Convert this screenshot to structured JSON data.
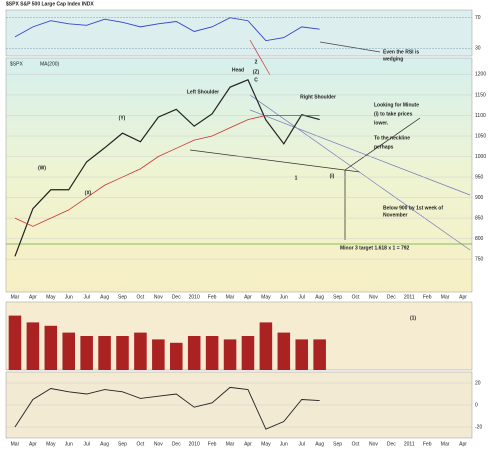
{
  "chart_data": [
    {
      "type": "line",
      "title": "$SPX S&P 500 Large Cap Index INDX",
      "values": [
        45,
        58,
        66,
        62,
        60,
        68,
        64,
        58,
        62,
        65,
        52,
        58,
        70,
        66,
        40,
        44,
        58,
        55,
        null,
        null,
        null,
        null,
        null,
        null,
        null,
        null
      ],
      "color": "#3344cc",
      "ylim": [
        20,
        80
      ],
      "yticks": [
        30,
        70
      ]
    },
    {
      "type": "line",
      "categories": [
        "Mar",
        "Apr",
        "May",
        "Jun",
        "Jul",
        "Aug",
        "Sep",
        "Oct",
        "Nov",
        "Dec",
        "2010",
        "Feb",
        "Mar",
        "Apr",
        "May",
        "Jun",
        "Jul",
        "Aug",
        "Sep",
        "Oct",
        "Nov",
        "Dec",
        "2011",
        "Feb",
        "Mar",
        "Apr"
      ],
      "series": [
        {
          "name": "$SPX",
          "color": "#222222",
          "values": [
            757,
            873,
            919,
            919,
            987,
            1021,
            1057,
            1036,
            1096,
            1115,
            1074,
            1104,
            1169,
            1187,
            1089,
            1031,
            1102,
            1090,
            null,
            null,
            null,
            null,
            null,
            null,
            null,
            null
          ]
        },
        {
          "name": "MA(200)",
          "color": "#cc3333",
          "values": [
            850,
            830,
            850,
            870,
            900,
            930,
            950,
            970,
            1000,
            1020,
            1040,
            1050,
            1070,
            1090,
            1100,
            1100,
            1100,
            1100,
            null,
            null,
            null,
            null,
            null,
            null,
            null,
            null
          ]
        }
      ],
      "ylim": [
        670,
        1240
      ],
      "yticks": [
        750,
        800,
        850,
        900,
        950,
        1000,
        1050,
        1100,
        1150,
        1200
      ],
      "grid": true,
      "annotations": [
        "Head",
        "Left Shoulder",
        "Right Shoulder",
        "2",
        "C",
        "1",
        "(W)",
        "(X)",
        "(Y)",
        "(Z)",
        "(i)",
        "Looking  for Minute",
        "(i) to take prices",
        "lower.",
        "To the neckline",
        "perhaps",
        "Below 900 by 1st week of",
        "November",
        "Minor 3 target 1.618 x 1 = 792",
        "Even the RSI is",
        "wedging"
      ]
    },
    {
      "type": "bar",
      "values": [
        8,
        7,
        6.5,
        5.5,
        5,
        5,
        5,
        5.5,
        4.5,
        4,
        5,
        5,
        4.5,
        5,
        7,
        5.5,
        4.5,
        4.5,
        null,
        null,
        null,
        null,
        null,
        null,
        null,
        null
      ],
      "color": "#aa2222",
      "ylim": [
        0,
        10
      ],
      "annotations": [
        "(1)"
      ]
    },
    {
      "type": "line",
      "categories": [
        "Mar",
        "Apr",
        "May",
        "Jun",
        "Jul",
        "Aug",
        "Sep",
        "Oct",
        "Nov",
        "Dec",
        "2010",
        "Feb",
        "Mar",
        "Apr",
        "May",
        "Jun",
        "Jul",
        "Aug",
        "Sep",
        "Oct",
        "Nov",
        "Dec",
        "2011",
        "Feb",
        "Mar",
        "Apr"
      ],
      "values": [
        -20,
        5,
        15,
        12,
        10,
        14,
        12,
        6,
        8,
        10,
        -2,
        2,
        16,
        14,
        -22,
        -15,
        5,
        4,
        null,
        null,
        null,
        null,
        null,
        null,
        null,
        null
      ],
      "color": "#222222",
      "ylim": [
        -30,
        30
      ],
      "yticks": [
        -20,
        0,
        20
      ]
    }
  ]
}
